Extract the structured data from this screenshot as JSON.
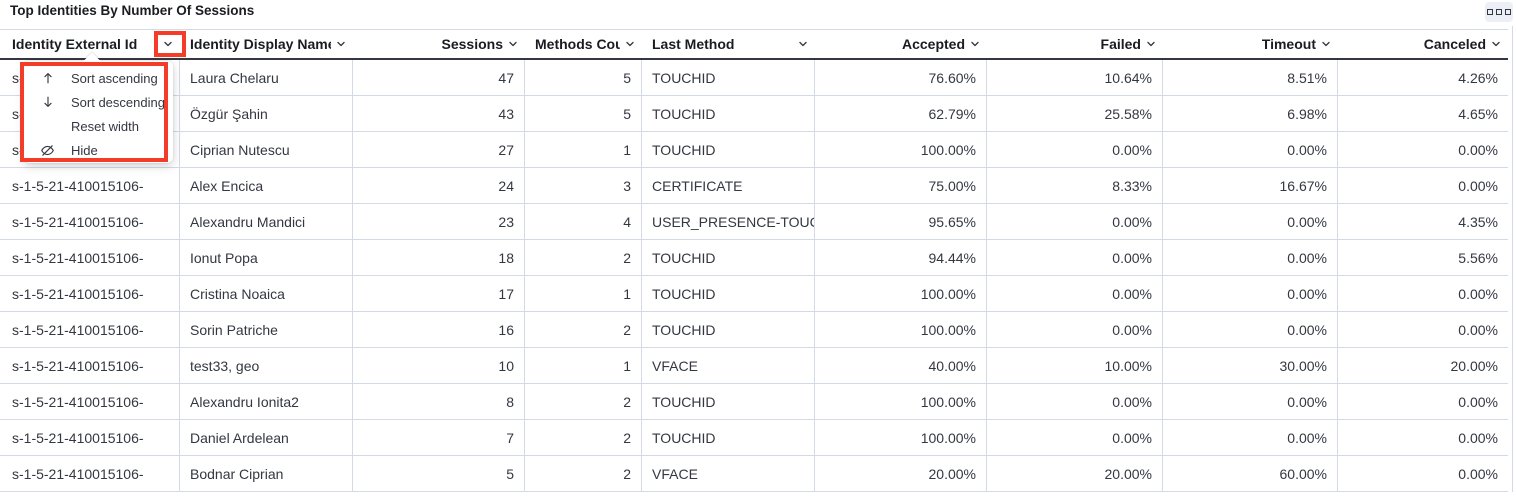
{
  "panel": {
    "title": "Top Identities By Number Of Sessions",
    "options_icon": "boxes-horizontal-icon"
  },
  "table": {
    "columns": [
      {
        "label": "Identity External Id"
      },
      {
        "label": "Identity Display Name"
      },
      {
        "label": "Sessions"
      },
      {
        "label": "Methods Count"
      },
      {
        "label": "Last Method"
      },
      {
        "label": "Accepted"
      },
      {
        "label": "Failed"
      },
      {
        "label": "Timeout"
      },
      {
        "label": "Canceled"
      }
    ],
    "rows": [
      {
        "external_id": "s-1-5-21-410015106-",
        "display_name": "Laura Chelaru",
        "sessions": "47",
        "methods_count": "5",
        "last_method": "TOUCHID",
        "accepted": "76.60%",
        "failed": "10.64%",
        "timeout": "8.51%",
        "canceled": "4.26%"
      },
      {
        "external_id": "s-1-5-21-410015106-",
        "display_name": "Özgür Şahin",
        "sessions": "43",
        "methods_count": "5",
        "last_method": "TOUCHID",
        "accepted": "62.79%",
        "failed": "25.58%",
        "timeout": "6.98%",
        "canceled": "4.65%"
      },
      {
        "external_id": "s-1-5-21-410015106-",
        "display_name": "Ciprian Nutescu",
        "sessions": "27",
        "methods_count": "1",
        "last_method": "TOUCHID",
        "accepted": "100.00%",
        "failed": "0.00%",
        "timeout": "0.00%",
        "canceled": "0.00%"
      },
      {
        "external_id": "s-1-5-21-410015106-",
        "display_name": "Alex Encica",
        "sessions": "24",
        "methods_count": "3",
        "last_method": "CERTIFICATE",
        "accepted": "75.00%",
        "failed": "8.33%",
        "timeout": "16.67%",
        "canceled": "0.00%"
      },
      {
        "external_id": "s-1-5-21-410015106-",
        "display_name": "Alexandru Mandici",
        "sessions": "23",
        "methods_count": "4",
        "last_method": "USER_PRESENCE-TOUC",
        "accepted": "95.65%",
        "failed": "0.00%",
        "timeout": "0.00%",
        "canceled": "4.35%"
      },
      {
        "external_id": "s-1-5-21-410015106-",
        "display_name": "Ionut Popa",
        "sessions": "18",
        "methods_count": "2",
        "last_method": "TOUCHID",
        "accepted": "94.44%",
        "failed": "0.00%",
        "timeout": "0.00%",
        "canceled": "5.56%"
      },
      {
        "external_id": "s-1-5-21-410015106-",
        "display_name": "Cristina Noaica",
        "sessions": "17",
        "methods_count": "1",
        "last_method": "TOUCHID",
        "accepted": "100.00%",
        "failed": "0.00%",
        "timeout": "0.00%",
        "canceled": "0.00%"
      },
      {
        "external_id": "s-1-5-21-410015106-",
        "display_name": "Sorin Patriche",
        "sessions": "16",
        "methods_count": "2",
        "last_method": "TOUCHID",
        "accepted": "100.00%",
        "failed": "0.00%",
        "timeout": "0.00%",
        "canceled": "0.00%"
      },
      {
        "external_id": "s-1-5-21-410015106-",
        "display_name": "test33, geo",
        "sessions": "10",
        "methods_count": "1",
        "last_method": "VFACE",
        "accepted": "40.00%",
        "failed": "10.00%",
        "timeout": "30.00%",
        "canceled": "20.00%"
      },
      {
        "external_id": "s-1-5-21-410015106-",
        "display_name": "Alexandru Ionita2",
        "sessions": "8",
        "methods_count": "2",
        "last_method": "TOUCHID",
        "accepted": "100.00%",
        "failed": "0.00%",
        "timeout": "0.00%",
        "canceled": "0.00%"
      },
      {
        "external_id": "s-1-5-21-410015106-",
        "display_name": "Daniel Ardelean",
        "sessions": "7",
        "methods_count": "2",
        "last_method": "TOUCHID",
        "accepted": "100.00%",
        "failed": "0.00%",
        "timeout": "0.00%",
        "canceled": "0.00%"
      },
      {
        "external_id": "s-1-5-21-410015106-",
        "display_name": "Bodnar Ciprian",
        "sessions": "5",
        "methods_count": "2",
        "last_method": "VFACE",
        "accepted": "20.00%",
        "failed": "20.00%",
        "timeout": "60.00%",
        "canceled": "0.00%"
      }
    ]
  },
  "column_menu": {
    "items": [
      {
        "icon": "sort-ascending-icon",
        "label": "Sort ascending"
      },
      {
        "icon": "sort-descending-icon",
        "label": "Sort descending"
      },
      {
        "icon": null,
        "label": "Reset width"
      },
      {
        "icon": "eye-closed-icon",
        "label": "Hide"
      }
    ]
  },
  "annotations": {
    "color": "#f43d29"
  }
}
